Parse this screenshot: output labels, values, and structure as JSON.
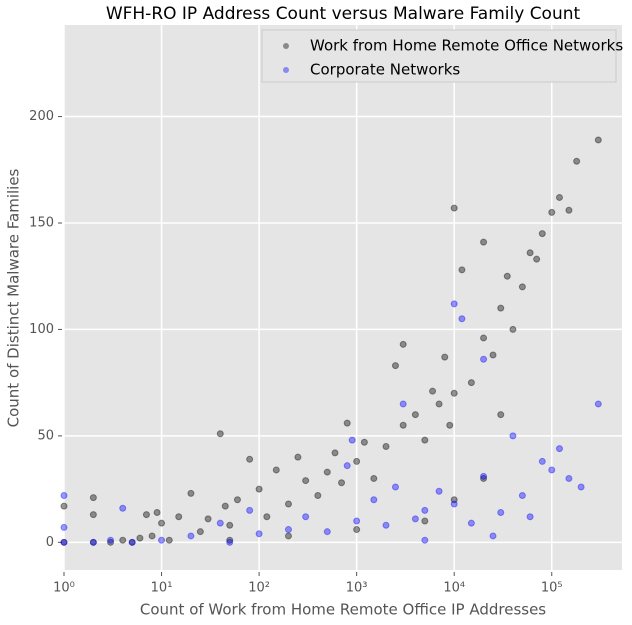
{
  "chart_data": {
    "type": "scatter",
    "title": "WFH-RO IP Address Count versus Malware Family Count",
    "x_label": "Count of Work from Home Remote Office IP Addresses",
    "y_label": "Count of Distinct Malware Families",
    "log_x": true,
    "grid": true,
    "legend": "upper right",
    "xlim": [
      1,
      525000
    ],
    "ylim": [
      -13,
      243
    ],
    "xticks": [
      {
        "value": 1,
        "label": "10⁰"
      },
      {
        "value": 10,
        "label": "10¹"
      },
      {
        "value": 100,
        "label": "10²"
      },
      {
        "value": 1000,
        "label": "10³"
      },
      {
        "value": 10000,
        "label": "10⁴"
      },
      {
        "value": 100000,
        "label": "10⁵"
      }
    ],
    "yticks": [
      0,
      50,
      100,
      150,
      200
    ],
    "series": [
      {
        "name": "Work from Home Remote Office Networks",
        "color": "#000000",
        "x": [
          1,
          1,
          2,
          2,
          2,
          3,
          4,
          5,
          6,
          7,
          8,
          9,
          10,
          12,
          15,
          20,
          25,
          30,
          40,
          45,
          50,
          60,
          80,
          100,
          120,
          150,
          200,
          250,
          300,
          400,
          500,
          600,
          700,
          800,
          1000,
          1200,
          1500,
          2000,
          2500,
          3000,
          3000,
          4000,
          5000,
          6000,
          7000,
          8000,
          9000,
          10000,
          10000,
          12000,
          15000,
          20000,
          20000,
          25000,
          30000,
          35000,
          40000,
          50000,
          60000,
          70000,
          80000,
          100000,
          120000,
          150000,
          180000,
          300000,
          30000,
          20000,
          10000,
          5000,
          1000,
          200,
          50
        ],
        "values": [
          0,
          17,
          0,
          21,
          13,
          0,
          1,
          0,
          2,
          13,
          3,
          14,
          9,
          1,
          12,
          23,
          5,
          11,
          51,
          17,
          8,
          20,
          39,
          25,
          12,
          34,
          18,
          40,
          29,
          22,
          33,
          42,
          28,
          56,
          38,
          47,
          30,
          45,
          83,
          93,
          55,
          60,
          48,
          71,
          65,
          87,
          55,
          157,
          70,
          128,
          75,
          96,
          141,
          88,
          110,
          125,
          100,
          120,
          136,
          133,
          145,
          155,
          162,
          156,
          179,
          189,
          60,
          30,
          20,
          10,
          6,
          3,
          1
        ]
      },
      {
        "name": "Corporate Networks",
        "color": "#0000ff",
        "x": [
          1,
          1,
          1,
          2,
          3,
          4,
          5,
          10,
          20,
          40,
          80,
          100,
          200,
          300,
          500,
          800,
          900,
          1000,
          1500,
          2000,
          2500,
          3000,
          4000,
          5000,
          7000,
          10000,
          10000,
          12000,
          15000,
          20000,
          20000,
          30000,
          40000,
          50000,
          60000,
          80000,
          100000,
          120000,
          150000,
          200000,
          300000,
          25000,
          5000,
          50
        ],
        "values": [
          0,
          22,
          7,
          0,
          1,
          16,
          0,
          1,
          3,
          9,
          15,
          4,
          6,
          12,
          5,
          36,
          48,
          10,
          20,
          8,
          26,
          65,
          11,
          15,
          24,
          112,
          18,
          105,
          9,
          86,
          31,
          14,
          50,
          22,
          12,
          38,
          34,
          44,
          30,
          26,
          65,
          3,
          1,
          0
        ]
      }
    ]
  }
}
